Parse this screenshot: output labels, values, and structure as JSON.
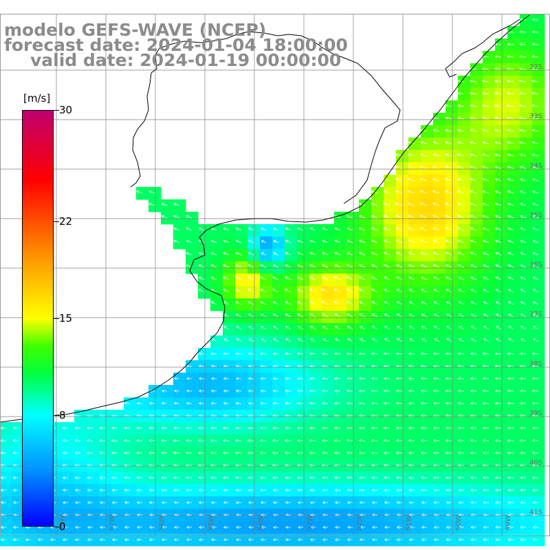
{
  "title": {
    "line1": "modelo GEFS-WAVE (NCEP)",
    "line2": "forecast date: 2024-01-04 18:00:00",
    "line3": "valid date: 2024-01-19 00:00:00"
  },
  "colorbar": {
    "unit": "[m/s]",
    "min": 0,
    "max": 30,
    "ticks": [
      {
        "value": 30,
        "label": "30"
      },
      {
        "value": 22,
        "label": "22"
      },
      {
        "value": 15,
        "label": "15"
      },
      {
        "value": 8,
        "label": "8"
      },
      {
        "value": 0,
        "label": "0"
      }
    ],
    "stops": [
      {
        "value": 0,
        "color": "#0000ff"
      },
      {
        "value": 4,
        "color": "#0090ff"
      },
      {
        "value": 8,
        "color": "#00ffff"
      },
      {
        "value": 11,
        "color": "#00ff40"
      },
      {
        "value": 13,
        "color": "#40ff00"
      },
      {
        "value": 15,
        "color": "#ffff00"
      },
      {
        "value": 19,
        "color": "#ffa000"
      },
      {
        "value": 22,
        "color": "#ff5000"
      },
      {
        "value": 25,
        "color": "#ff0000"
      },
      {
        "value": 30,
        "color": "#c00070"
      }
    ]
  },
  "grid": {
    "lat_labels": [
      "32S",
      "33S",
      "34S",
      "35S",
      "36S",
      "37S",
      "38S",
      "39S",
      "40S",
      "41S"
    ],
    "lon_labels": [
      "58W",
      "57W",
      "56W",
      "55W",
      "54W",
      "53W",
      "52W",
      "51W",
      "50W",
      "49W"
    ]
  },
  "map": {
    "land_color": "#ffffff",
    "coast_color": "#000000",
    "grid_color": "#7f7f7f",
    "arrow_color": "#ffffff"
  }
}
